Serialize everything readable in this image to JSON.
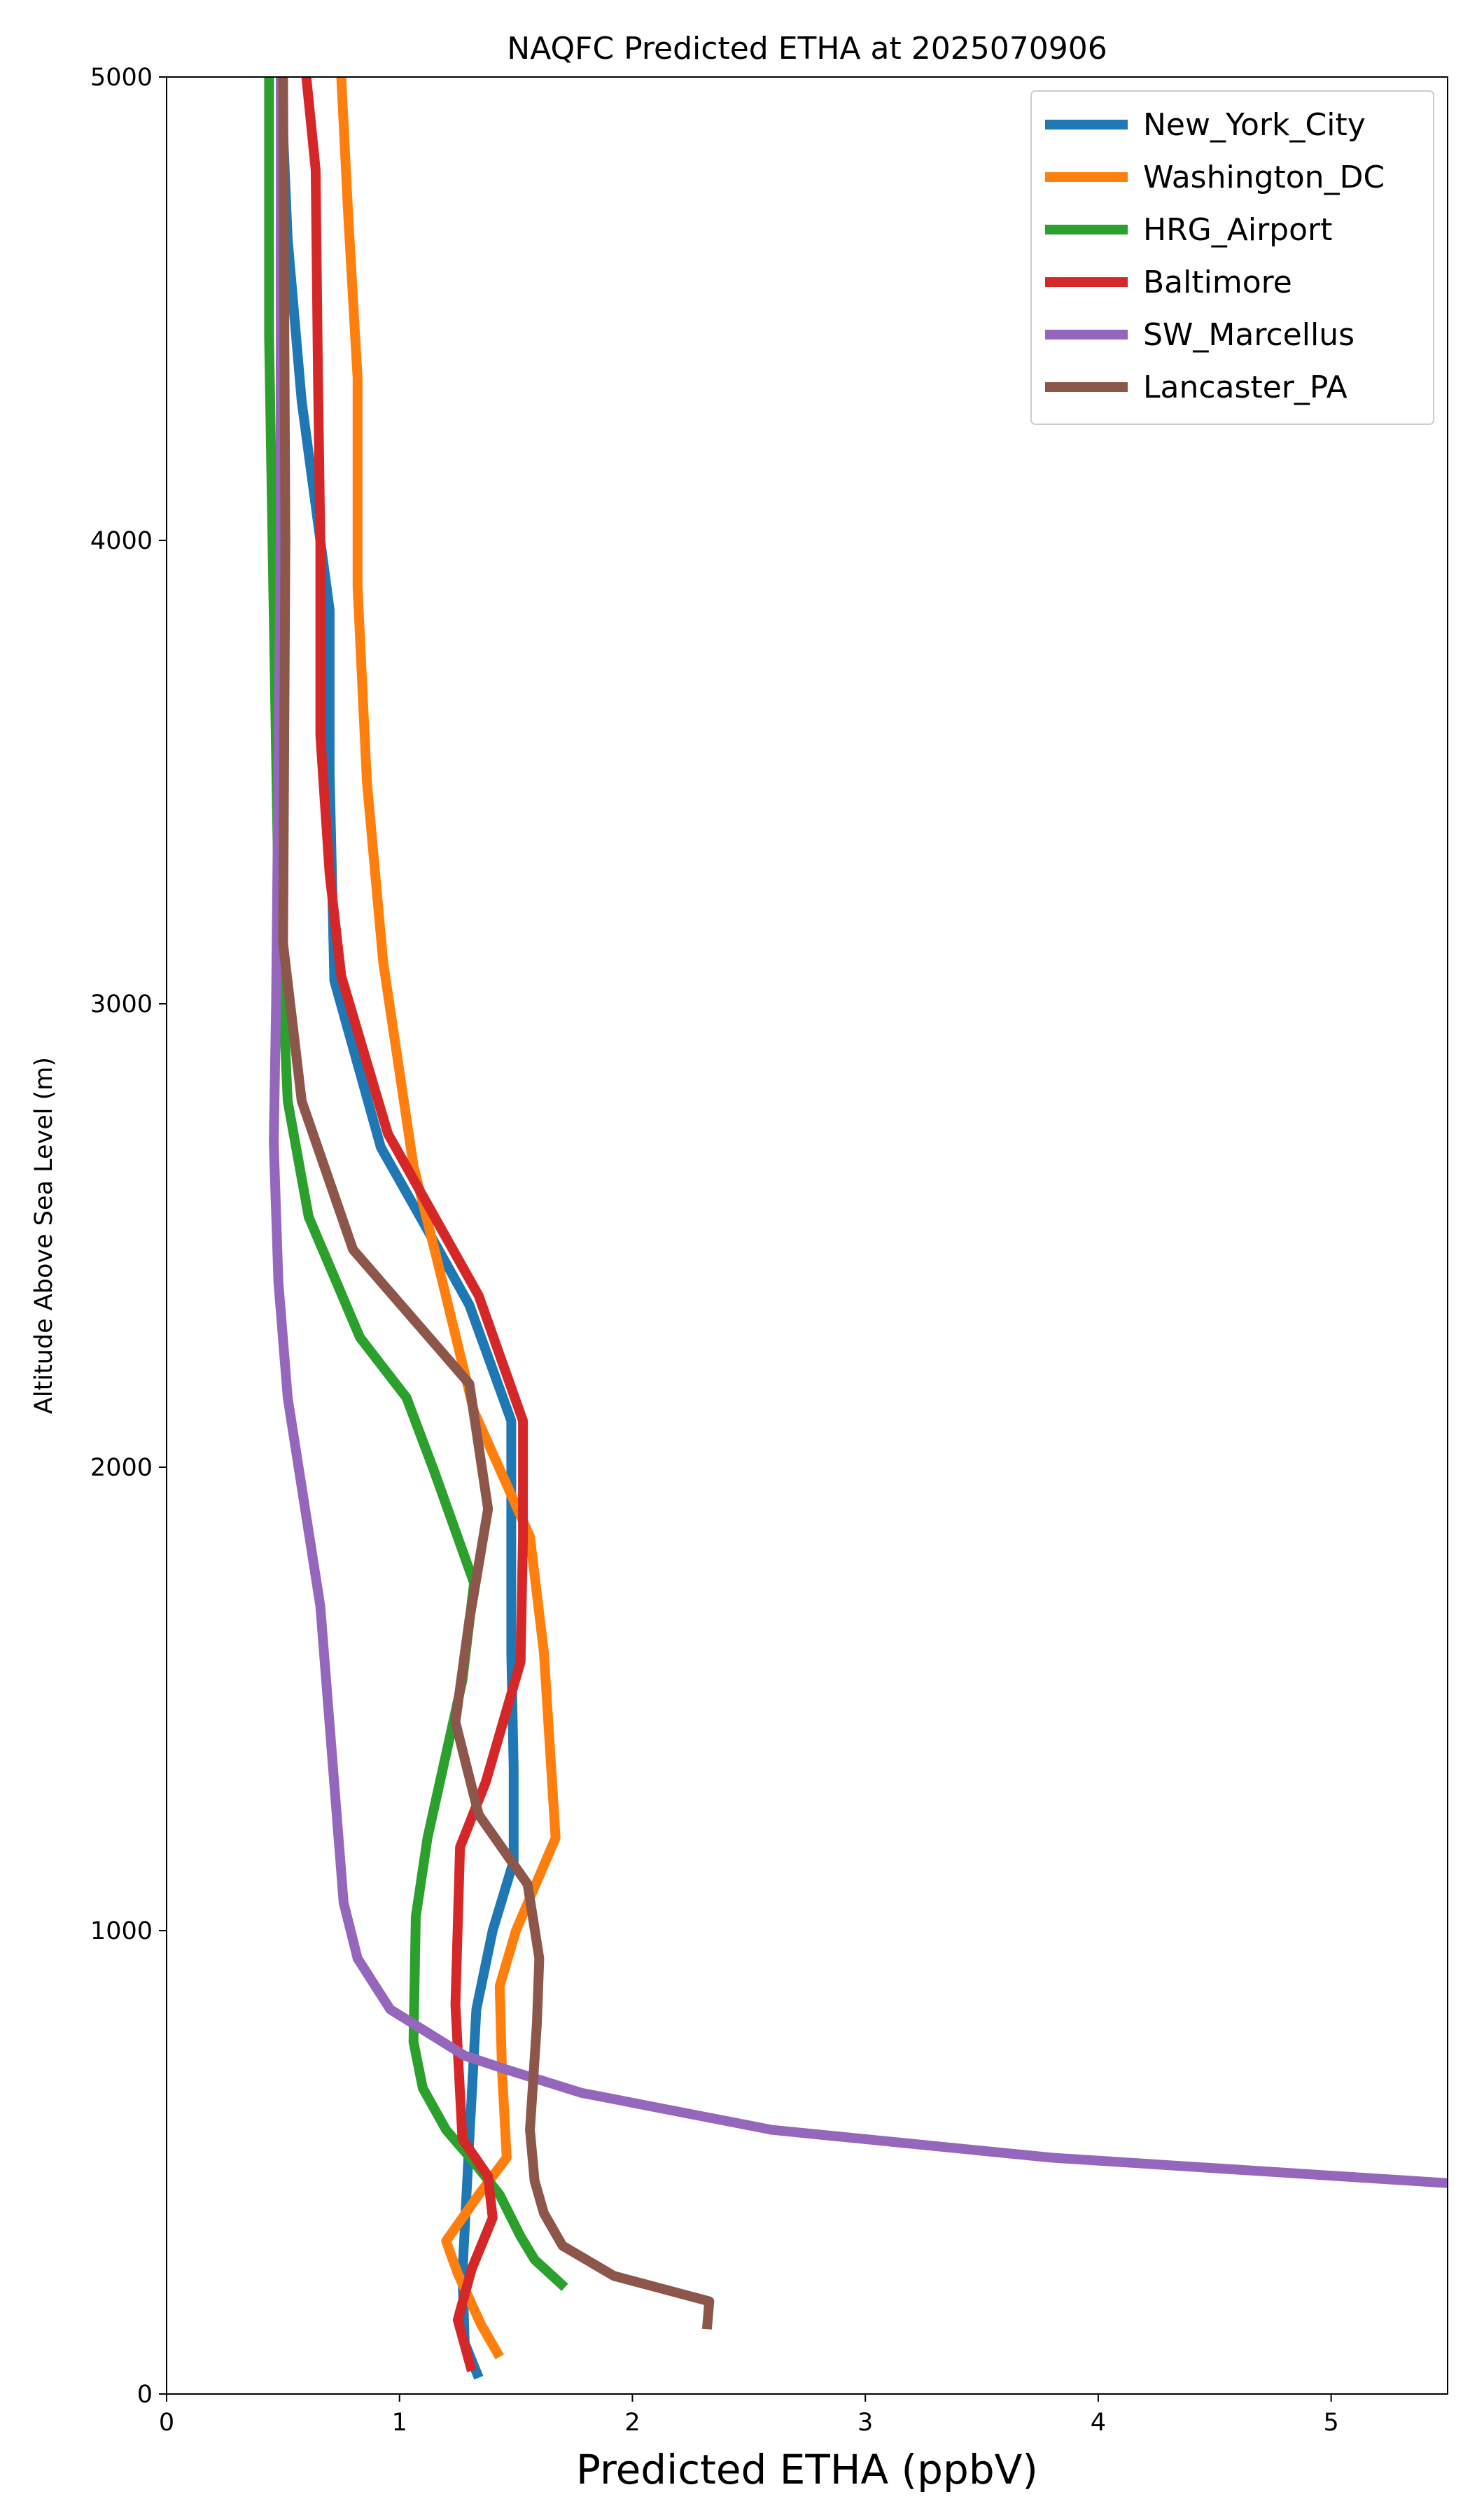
{
  "chart_data": {
    "type": "line",
    "title": "NAQFC Predicted ETHA at 2025070906",
    "xlabel": "Predicted ETHA (ppbV)",
    "ylabel": "Altitude Above Sea Level (m)",
    "xlim": [
      0,
      5.5
    ],
    "ylim": [
      0,
      5000
    ],
    "xticks": [
      0,
      1,
      2,
      3,
      4,
      5
    ],
    "yticks": [
      0,
      1000,
      2000,
      3000,
      4000,
      5000
    ],
    "grid": false,
    "legend_position": "top-right",
    "series": [
      {
        "name": "New_York_City",
        "color": "#1f77b4",
        "points": [
          [
            1.34,
            35
          ],
          [
            1.28,
            110
          ],
          [
            1.27,
            260
          ],
          [
            1.3,
            550
          ],
          [
            1.33,
            830
          ],
          [
            1.4,
            1000
          ],
          [
            1.49,
            1150
          ],
          [
            1.49,
            1350
          ],
          [
            1.48,
            1600
          ],
          [
            1.48,
            1850
          ],
          [
            1.48,
            2100
          ],
          [
            1.3,
            2350
          ],
          [
            1.1,
            2530
          ],
          [
            0.92,
            2690
          ],
          [
            0.72,
            3050
          ],
          [
            0.7,
            3500
          ],
          [
            0.7,
            3850
          ],
          [
            0.58,
            4300
          ],
          [
            0.52,
            4650
          ],
          [
            0.49,
            5000
          ]
        ]
      },
      {
        "name": "Washington_DC",
        "color": "#ff7f0e",
        "points": [
          [
            1.43,
            80
          ],
          [
            1.35,
            150
          ],
          [
            1.25,
            260
          ],
          [
            1.2,
            330
          ],
          [
            1.34,
            430
          ],
          [
            1.46,
            510
          ],
          [
            1.44,
            700
          ],
          [
            1.43,
            880
          ],
          [
            1.5,
            1000
          ],
          [
            1.67,
            1200
          ],
          [
            1.62,
            1600
          ],
          [
            1.56,
            1850
          ],
          [
            1.32,
            2120
          ],
          [
            1.16,
            2450
          ],
          [
            1.06,
            2650
          ],
          [
            0.93,
            3090
          ],
          [
            0.86,
            3480
          ],
          [
            0.82,
            3900
          ],
          [
            0.82,
            4350
          ],
          [
            0.78,
            4700
          ],
          [
            0.75,
            5000
          ]
        ]
      },
      {
        "name": "HRG_Airport",
        "color": "#2ca02c",
        "points": [
          [
            1.71,
            230
          ],
          [
            1.58,
            290
          ],
          [
            1.52,
            340
          ],
          [
            1.43,
            430
          ],
          [
            1.32,
            500
          ],
          [
            1.2,
            570
          ],
          [
            1.1,
            660
          ],
          [
            1.06,
            760
          ],
          [
            1.07,
            1030
          ],
          [
            1.12,
            1200
          ],
          [
            1.27,
            1540
          ],
          [
            1.32,
            1750
          ],
          [
            1.15,
            1990
          ],
          [
            1.03,
            2150
          ],
          [
            0.83,
            2280
          ],
          [
            0.61,
            2540
          ],
          [
            0.52,
            2790
          ],
          [
            0.48,
            3240
          ],
          [
            0.44,
            4440
          ],
          [
            0.44,
            5000
          ]
        ]
      },
      {
        "name": "Baltimore",
        "color": "#d62728",
        "points": [
          [
            1.31,
            50
          ],
          [
            1.25,
            160
          ],
          [
            1.31,
            270
          ],
          [
            1.4,
            380
          ],
          [
            1.38,
            470
          ],
          [
            1.27,
            550
          ],
          [
            1.24,
            840
          ],
          [
            1.26,
            1180
          ],
          [
            1.37,
            1320
          ],
          [
            1.52,
            1580
          ],
          [
            1.53,
            1850
          ],
          [
            1.53,
            2100
          ],
          [
            1.34,
            2370
          ],
          [
            0.95,
            2720
          ],
          [
            0.75,
            3060
          ],
          [
            0.7,
            3280
          ],
          [
            0.66,
            3580
          ],
          [
            0.66,
            4000
          ],
          [
            0.65,
            4350
          ],
          [
            0.64,
            4800
          ],
          [
            0.6,
            5000
          ]
        ]
      },
      {
        "name": "SW_Marcellus",
        "color": "#9467bd",
        "points": [
          [
            5.5,
            455
          ],
          [
            3.8,
            510
          ],
          [
            2.6,
            570
          ],
          [
            1.78,
            650
          ],
          [
            1.46,
            700
          ],
          [
            1.28,
            730
          ],
          [
            0.96,
            830
          ],
          [
            0.82,
            940
          ],
          [
            0.76,
            1060
          ],
          [
            0.66,
            1700
          ],
          [
            0.52,
            2150
          ],
          [
            0.48,
            2400
          ],
          [
            0.46,
            2700
          ],
          [
            0.47,
            3000
          ],
          [
            0.49,
            4000
          ],
          [
            0.49,
            5000
          ]
        ]
      },
      {
        "name": "Lancaster_PA",
        "color": "#8c564b",
        "points": [
          [
            2.32,
            140
          ],
          [
            2.33,
            200
          ],
          [
            1.92,
            255
          ],
          [
            1.7,
            320
          ],
          [
            1.62,
            390
          ],
          [
            1.58,
            460
          ],
          [
            1.56,
            570
          ],
          [
            1.59,
            800
          ],
          [
            1.6,
            940
          ],
          [
            1.55,
            1100
          ],
          [
            1.34,
            1250
          ],
          [
            1.24,
            1450
          ],
          [
            1.3,
            1670
          ],
          [
            1.38,
            1910
          ],
          [
            1.3,
            2180
          ],
          [
            0.8,
            2470
          ],
          [
            0.58,
            2790
          ],
          [
            0.5,
            3130
          ],
          [
            0.51,
            4000
          ],
          [
            0.5,
            5000
          ]
        ]
      }
    ]
  }
}
